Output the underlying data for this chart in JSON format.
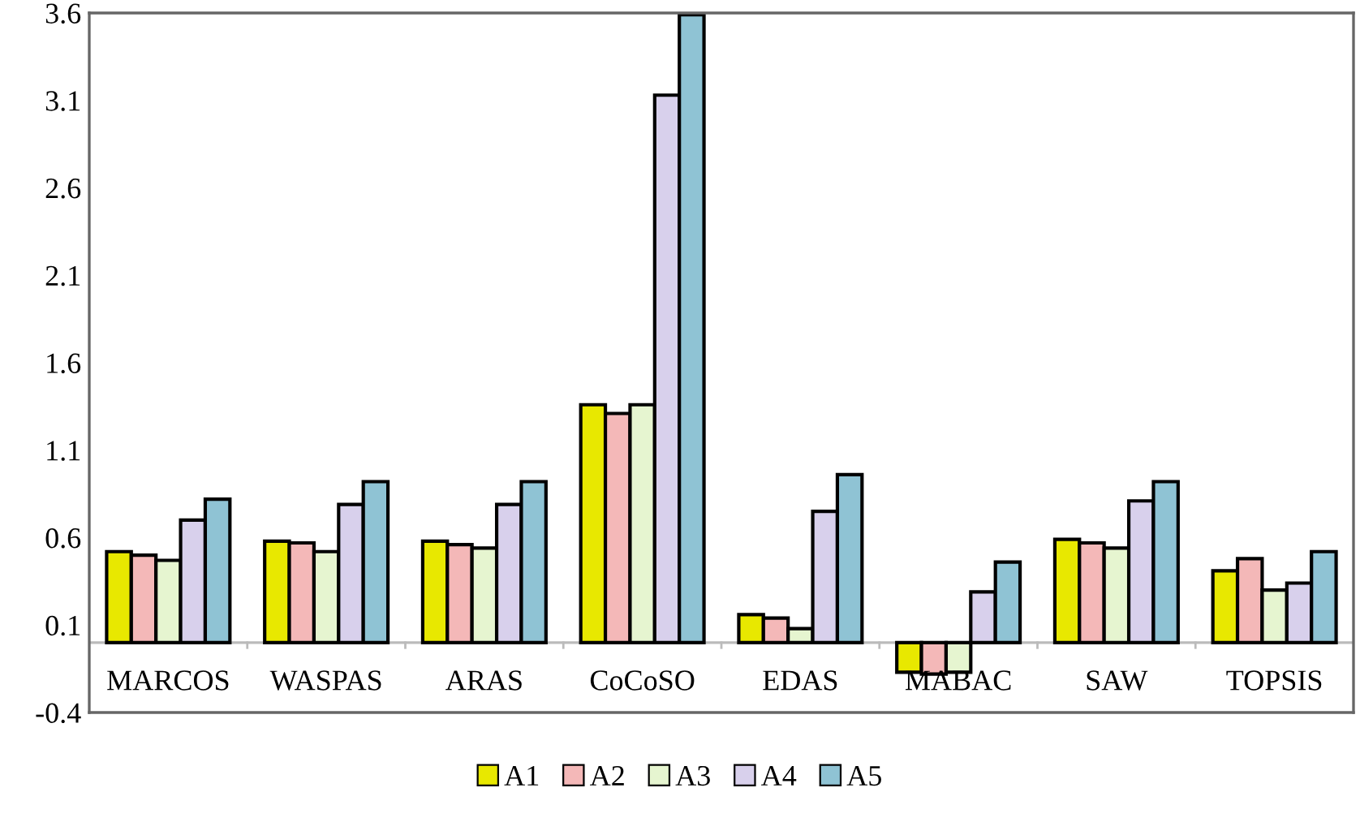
{
  "chart_data": {
    "type": "bar",
    "categories": [
      "MARCOS",
      "WASPAS",
      "ARAS",
      "CoCoSO",
      "EDAS",
      "MABAC",
      "SAW",
      "TOPSIS"
    ],
    "series": [
      {
        "name": "A1",
        "color": "#e8e800",
        "values": [
          0.52,
          0.58,
          0.58,
          1.36,
          0.16,
          -0.17,
          0.59,
          0.41
        ]
      },
      {
        "name": "A2",
        "color": "#f4b8b8",
        "values": [
          0.5,
          0.57,
          0.56,
          1.31,
          0.14,
          -0.18,
          0.57,
          0.48
        ]
      },
      {
        "name": "A3",
        "color": "#e6f5d0",
        "values": [
          0.47,
          0.52,
          0.54,
          1.36,
          0.08,
          -0.17,
          0.54,
          0.3
        ]
      },
      {
        "name": "A4",
        "color": "#d8d0ec",
        "values": [
          0.7,
          0.79,
          0.79,
          3.13,
          0.75,
          0.29,
          0.81,
          0.34
        ]
      },
      {
        "name": "A5",
        "color": "#8fc3d4",
        "values": [
          0.82,
          0.92,
          0.92,
          3.59,
          0.96,
          0.46,
          0.92,
          0.52
        ]
      }
    ],
    "ylim": [
      -0.4,
      3.6
    ],
    "yticks": [
      -0.4,
      0.1,
      0.6,
      1.1,
      1.6,
      2.1,
      2.6,
      3.1,
      3.6
    ],
    "grid": false,
    "legend": "bottom"
  }
}
